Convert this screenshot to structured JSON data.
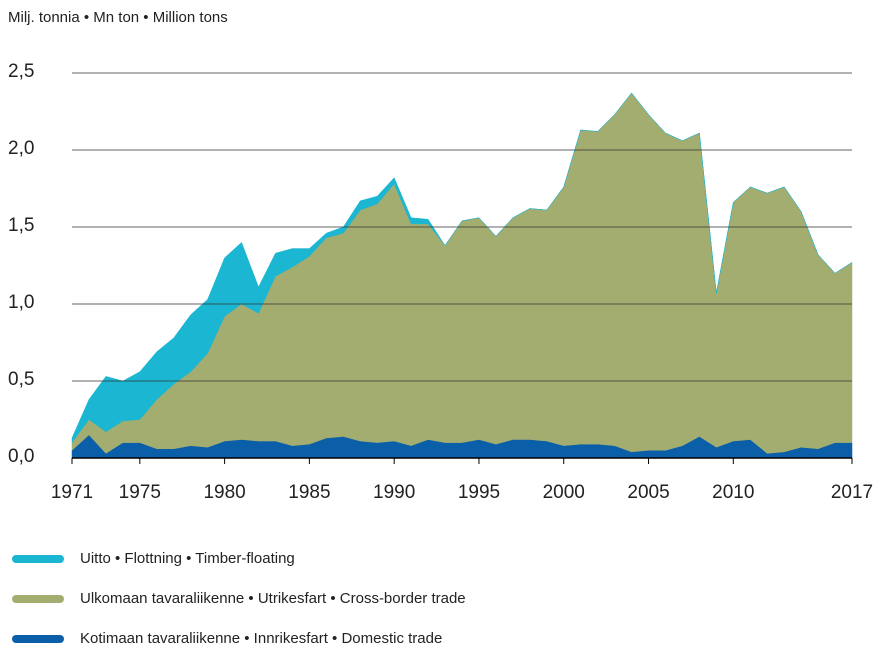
{
  "chart_data": {
    "type": "stacked_area",
    "title": "Milj. tonnia • Mn ton • Million tons",
    "x": [
      1971,
      1972,
      1973,
      1974,
      1975,
      1976,
      1977,
      1978,
      1979,
      1980,
      1981,
      1982,
      1983,
      1984,
      1985,
      1986,
      1987,
      1988,
      1989,
      1990,
      1991,
      1992,
      1993,
      1994,
      1995,
      1996,
      1997,
      1998,
      1999,
      2000,
      2001,
      2002,
      2003,
      2004,
      2005,
      2006,
      2007,
      2008,
      2009,
      2010,
      2011,
      2012,
      2013,
      2014,
      2015,
      2016,
      2017
    ],
    "series": [
      {
        "name": "Kotimaan tavaraliikenne • Innrikesfart • Domestic trade",
        "color": "#0b5fa8",
        "values": [
          0.05,
          0.15,
          0.03,
          0.1,
          0.1,
          0.06,
          0.06,
          0.08,
          0.07,
          0.11,
          0.12,
          0.11,
          0.11,
          0.08,
          0.09,
          0.13,
          0.14,
          0.11,
          0.1,
          0.11,
          0.08,
          0.12,
          0.1,
          0.1,
          0.12,
          0.09,
          0.12,
          0.12,
          0.11,
          0.08,
          0.09,
          0.09,
          0.08,
          0.04,
          0.05,
          0.05,
          0.08,
          0.14,
          0.07,
          0.11,
          0.12,
          0.03,
          0.04,
          0.07,
          0.06,
          0.1,
          0.1
        ]
      },
      {
        "name": "Ulkomaan tavaraliikenne • Utrikesfart • Cross-border trade",
        "color": "#a3ad70",
        "values": [
          0.05,
          0.1,
          0.14,
          0.14,
          0.15,
          0.32,
          0.42,
          0.48,
          0.61,
          0.81,
          0.88,
          0.83,
          1.07,
          1.16,
          1.22,
          1.3,
          1.32,
          1.5,
          1.55,
          1.67,
          1.44,
          1.4,
          1.28,
          1.44,
          1.44,
          1.35,
          1.44,
          1.5,
          1.5,
          1.68,
          2.04,
          2.03,
          2.15,
          2.33,
          2.18,
          2.06,
          1.98,
          1.97,
          1.0,
          1.55,
          1.64,
          1.69,
          1.72,
          1.53,
          1.26,
          1.1,
          1.17
        ]
      },
      {
        "name": "Uitto • Flottning • Timber-floating",
        "color": "#1ab6d2",
        "values": [
          0.03,
          0.13,
          0.36,
          0.26,
          0.31,
          0.31,
          0.3,
          0.37,
          0.35,
          0.38,
          0.4,
          0.17,
          0.15,
          0.12,
          0.05,
          0.03,
          0.04,
          0.06,
          0.05,
          0.04,
          0.04,
          0.03,
          0,
          0,
          0,
          0,
          0,
          0,
          0,
          0,
          0,
          0,
          0,
          0,
          0,
          0,
          0,
          0,
          0,
          0,
          0,
          0,
          0,
          0,
          0,
          0,
          0
        ]
      }
    ],
    "xlim": [
      1971,
      2017
    ],
    "xticks": [
      1971,
      1975,
      1980,
      1985,
      1990,
      1995,
      2000,
      2005,
      2010,
      2017
    ],
    "ylim": [
      0,
      2.5
    ],
    "yticks": [
      {
        "value": 0,
        "label": "0,0"
      },
      {
        "value": 0.5,
        "label": "0,5"
      },
      {
        "value": 1,
        "label": "1,0"
      },
      {
        "value": 1.5,
        "label": "1,5"
      },
      {
        "value": 2,
        "label": "2,0"
      },
      {
        "value": 2.5,
        "label": "2,5"
      }
    ],
    "grid": true,
    "legend": "bottom"
  }
}
